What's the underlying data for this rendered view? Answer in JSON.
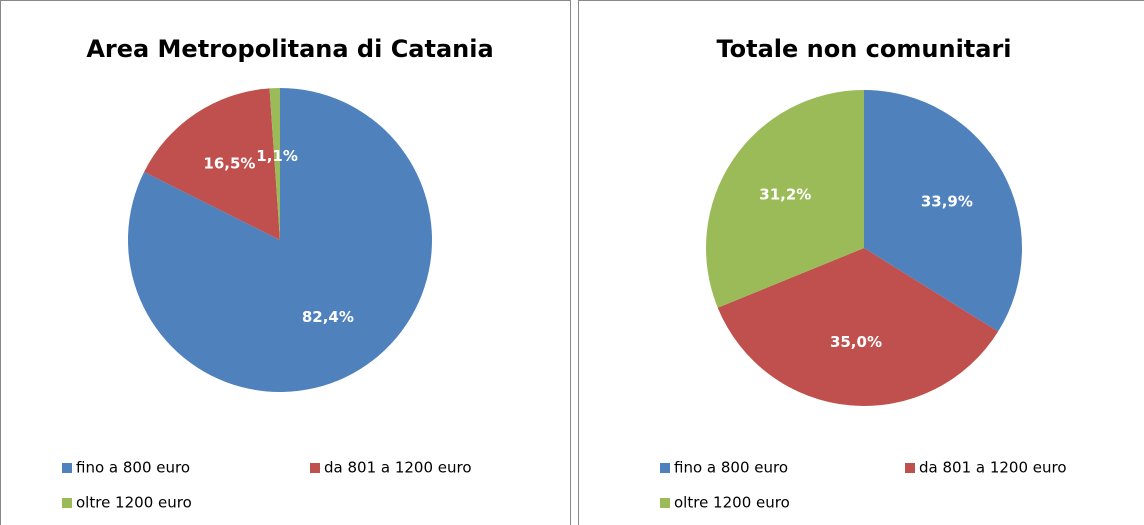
{
  "chart_data": [
    {
      "type": "pie",
      "title": "Area Metropolitana di Catania",
      "categories": [
        "fino a 800 euro",
        "da 801 a 1200 euro",
        "oltre 1200 euro"
      ],
      "values": [
        82.4,
        16.5,
        1.1
      ],
      "value_labels": [
        "82,4%",
        "16,5%",
        "1,1%"
      ],
      "colors": [
        "#4f81bd",
        "#c0504d",
        "#9bbb59"
      ],
      "legend": "bottom"
    },
    {
      "type": "pie",
      "title": "Totale non comunitari",
      "categories": [
        "fino a 800 euro",
        "da 801 a 1200 euro",
        "oltre 1200 euro"
      ],
      "values": [
        33.9,
        35.0,
        31.2
      ],
      "value_labels": [
        "33,9%",
        "35,0%",
        "31,2%"
      ],
      "colors": [
        "#4f81bd",
        "#c0504d",
        "#9bbb59"
      ],
      "legend": "bottom"
    }
  ]
}
